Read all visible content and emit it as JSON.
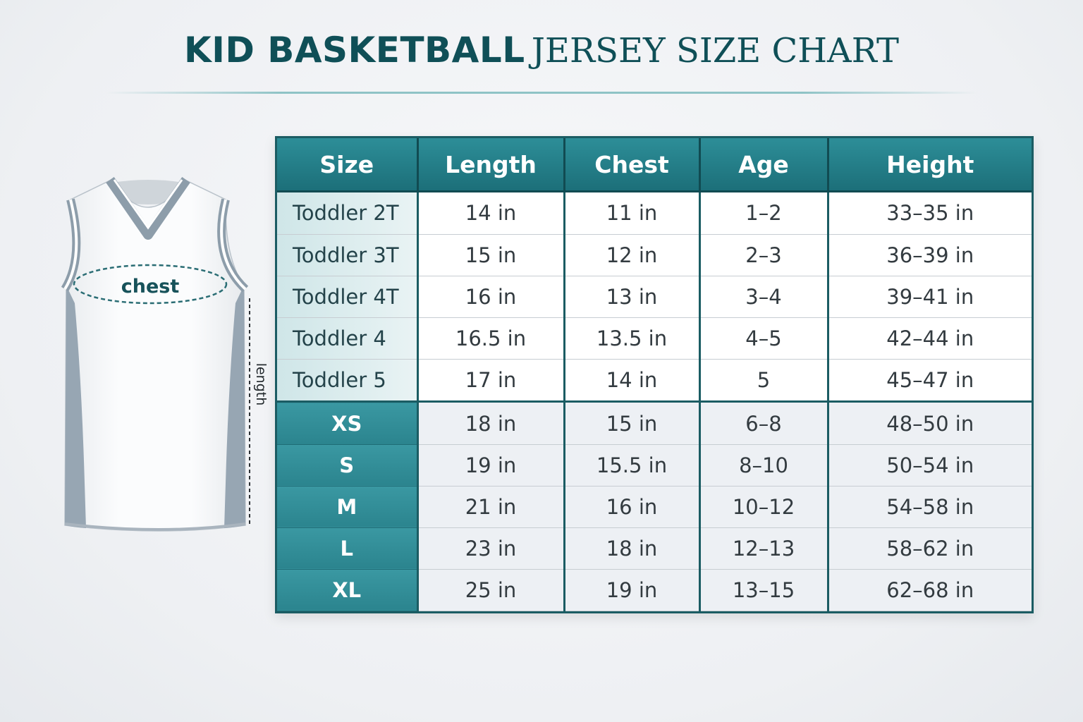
{
  "title": {
    "bold_part": "KID BASKETBALL",
    "serif_part": "JERSEY SIZE CHART"
  },
  "jersey": {
    "chest_label": "chest",
    "length_label": "length"
  },
  "colors": {
    "primary": "#1c6f79",
    "title": "#0f4f57",
    "accent_light": "#cfe6e8",
    "jersey_trim": "#94a4b1"
  },
  "chart_data": {
    "type": "table",
    "title": "KID BASKETBALL JERSEY SIZE CHART",
    "columns": [
      "Size",
      "Length",
      "Chest",
      "Age",
      "Height"
    ],
    "rows": [
      [
        "Toddler 2T",
        "14 in",
        "11 in",
        "1–2",
        "33–35 in"
      ],
      [
        "Toddler 3T",
        "15 in",
        "12 in",
        "2–3",
        "36–39 in"
      ],
      [
        "Toddler 4T",
        "16 in",
        "13 in",
        "3–4",
        "39–41 in"
      ],
      [
        "Toddler 4",
        "16.5 in",
        "13.5 in",
        "4–5",
        "42–44 in"
      ],
      [
        "Toddler 5",
        "17 in",
        "14 in",
        "5",
        "45–47 in"
      ],
      [
        "XS",
        "18 in",
        "15 in",
        "6–8",
        "48–50 in"
      ],
      [
        "S",
        "19 in",
        "15.5 in",
        "8–10",
        "50–54 in"
      ],
      [
        "M",
        "21 in",
        "16 in",
        "10–12",
        "54–58 in"
      ],
      [
        "L",
        "23 in",
        "18 in",
        "12–13",
        "58–62 in"
      ],
      [
        "XL",
        "25 in",
        "19 in",
        "13–15",
        "62–68 in"
      ]
    ]
  }
}
